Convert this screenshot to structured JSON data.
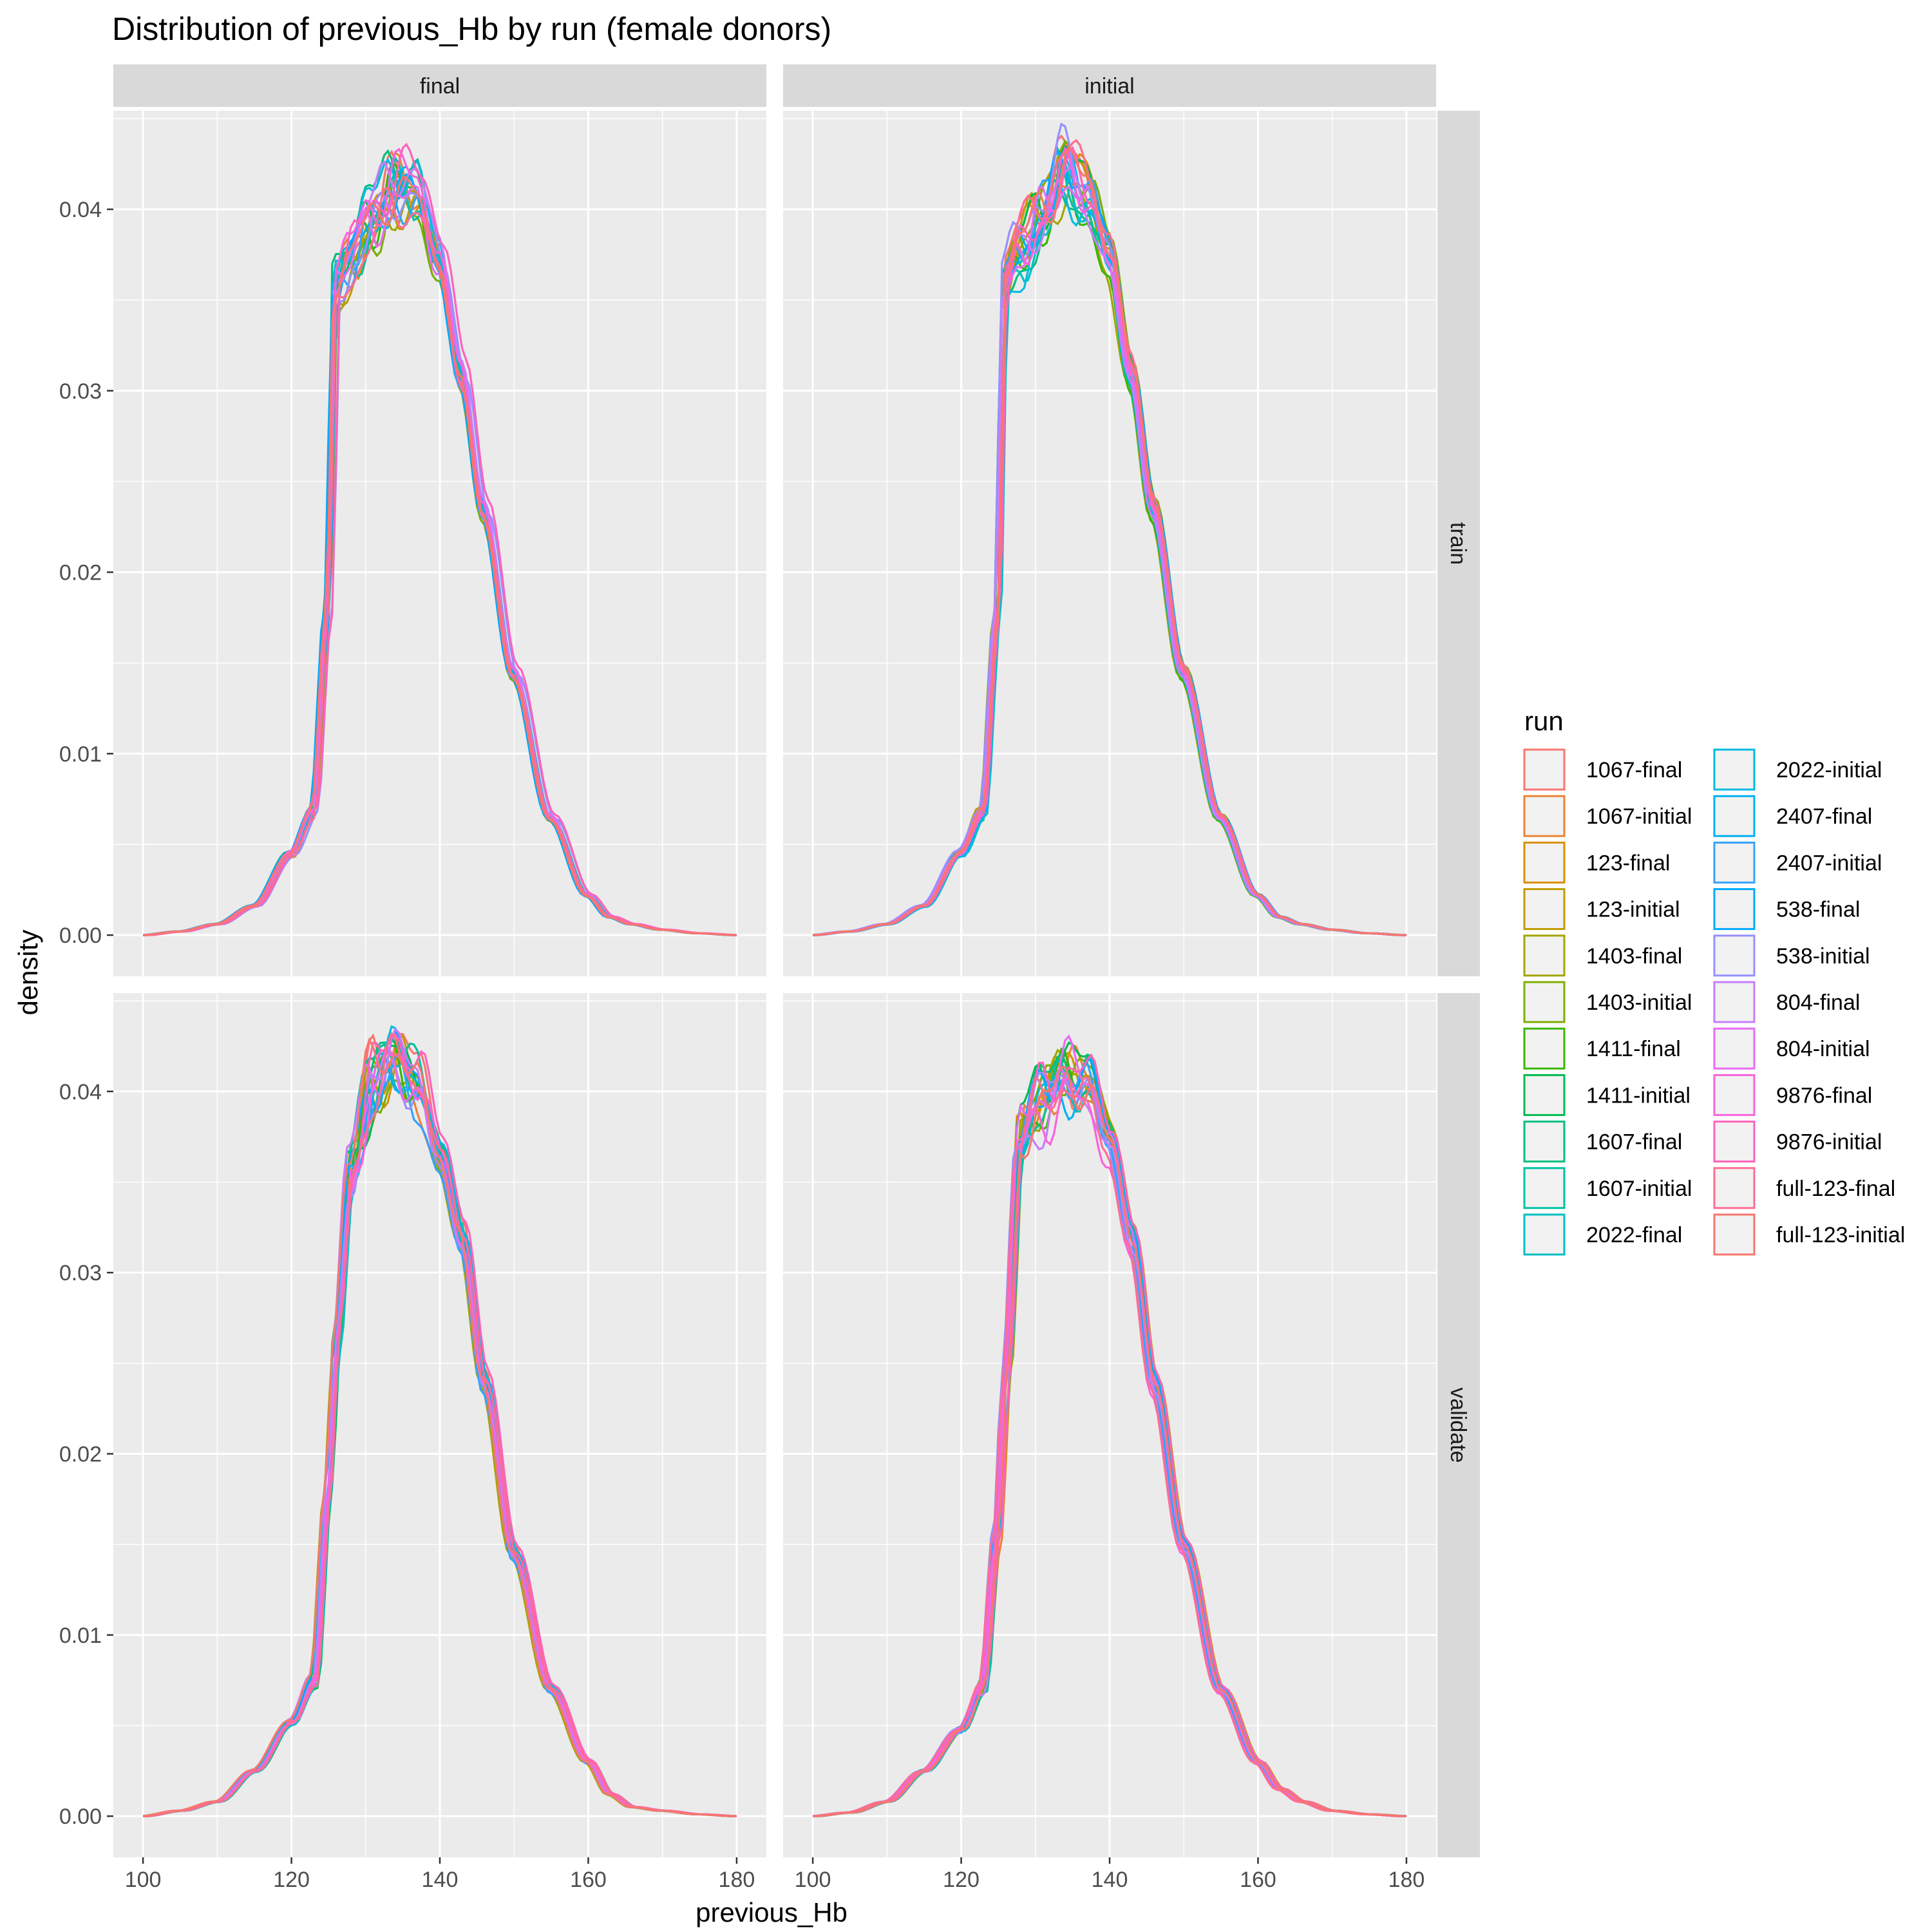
{
  "chart_data": {
    "type": "line",
    "title": "Distribution of previous_Hb by run (female donors)",
    "xlabel": "previous_Hb",
    "ylabel": "density",
    "xlim": [
      96,
      184
    ],
    "ylim": [
      -0.00227,
      0.04543
    ],
    "x_ticks": [
      100,
      120,
      140,
      160,
      180
    ],
    "y_ticks": [
      0.0,
      0.01,
      0.02,
      0.03,
      0.04
    ],
    "y_tick_labels": [
      "0.00",
      "0.01",
      "0.02",
      "0.03",
      "0.04"
    ],
    "grid": true,
    "facet_columns": [
      "final",
      "initial"
    ],
    "facet_rows": [
      "train",
      "validate"
    ],
    "legend": {
      "title": "run",
      "position": "right",
      "entries": [
        {
          "label": "1067-final",
          "color": "#F8766D"
        },
        {
          "label": "1067-initial",
          "color": "#EB8335"
        },
        {
          "label": "123-final",
          "color": "#D89000"
        },
        {
          "label": "123-initial",
          "color": "#C09B00"
        },
        {
          "label": "1403-final",
          "color": "#A3A500"
        },
        {
          "label": "1403-initial",
          "color": "#7CAE00"
        },
        {
          "label": "1411-final",
          "color": "#39B600"
        },
        {
          "label": "1411-initial",
          "color": "#00BB4E"
        },
        {
          "label": "1607-final",
          "color": "#00BF7D"
        },
        {
          "label": "1607-initial",
          "color": "#00C1A3"
        },
        {
          "label": "2022-final",
          "color": "#00BFC4"
        },
        {
          "label": "2022-initial",
          "color": "#00BAE0"
        },
        {
          "label": "2407-final",
          "color": "#00B0F6"
        },
        {
          "label": "2407-initial",
          "color": "#35A2FF"
        },
        {
          "label": "538-final",
          "color": "#00A9FF"
        },
        {
          "label": "538-initial",
          "color": "#9590FF"
        },
        {
          "label": "804-final",
          "color": "#C77CFF"
        },
        {
          "label": "804-initial",
          "color": "#E76BF3"
        },
        {
          "label": "9876-final",
          "color": "#FA62DB"
        },
        {
          "label": "9876-initial",
          "color": "#FF62BC"
        },
        {
          "label": "full-123-final",
          "color": "#FF6C91"
        },
        {
          "label": "full-123-initial",
          "color": "#F8766D"
        }
      ]
    },
    "panels": [
      {
        "col": "final",
        "row": "train",
        "x": [
          100,
          105,
          110,
          115,
          120,
          123,
          125,
          126,
          128,
          131,
          134,
          137,
          140,
          143,
          146,
          150,
          155,
          160,
          163,
          166,
          170,
          175,
          180
        ],
        "y": [
          0.0,
          0.0002,
          0.0006,
          0.0016,
          0.0045,
          0.0068,
          0.018,
          0.036,
          0.0375,
          0.0395,
          0.0415,
          0.041,
          0.0375,
          0.031,
          0.0235,
          0.0145,
          0.0065,
          0.0022,
          0.001,
          0.0006,
          0.0003,
          0.0001,
          0.0
        ]
      },
      {
        "col": "initial",
        "row": "train",
        "x": [
          100,
          105,
          110,
          115,
          120,
          123,
          125,
          126,
          128,
          131,
          134,
          137,
          140,
          143,
          146,
          150,
          155,
          160,
          163,
          166,
          170,
          175,
          180
        ],
        "y": [
          0.0,
          0.0002,
          0.0006,
          0.0016,
          0.0045,
          0.0068,
          0.018,
          0.036,
          0.0378,
          0.0398,
          0.042,
          0.041,
          0.0375,
          0.031,
          0.0235,
          0.0145,
          0.0065,
          0.0022,
          0.001,
          0.0006,
          0.0003,
          0.0001,
          0.0
        ]
      },
      {
        "col": "final",
        "row": "validate",
        "x": [
          100,
          105,
          110,
          115,
          120,
          123,
          125,
          126,
          128,
          131,
          134,
          137,
          140,
          143,
          146,
          150,
          155,
          160,
          163,
          166,
          170,
          175,
          180
        ],
        "y": [
          0.0,
          0.0003,
          0.0008,
          0.0025,
          0.0052,
          0.0075,
          0.018,
          0.026,
          0.036,
          0.0405,
          0.042,
          0.0405,
          0.0365,
          0.032,
          0.024,
          0.0145,
          0.007,
          0.003,
          0.0012,
          0.0005,
          0.0003,
          0.0001,
          0.0
        ]
      },
      {
        "col": "initial",
        "row": "validate",
        "x": [
          100,
          105,
          110,
          115,
          120,
          123,
          125,
          126,
          128,
          131,
          134,
          137,
          140,
          143,
          146,
          150,
          155,
          160,
          163,
          166,
          170,
          175,
          180
        ],
        "y": [
          0.0,
          0.0002,
          0.0008,
          0.0025,
          0.0048,
          0.0072,
          0.016,
          0.024,
          0.038,
          0.0395,
          0.041,
          0.0405,
          0.0375,
          0.032,
          0.024,
          0.015,
          0.007,
          0.003,
          0.0015,
          0.0008,
          0.0003,
          0.0001,
          0.0
        ]
      }
    ]
  }
}
